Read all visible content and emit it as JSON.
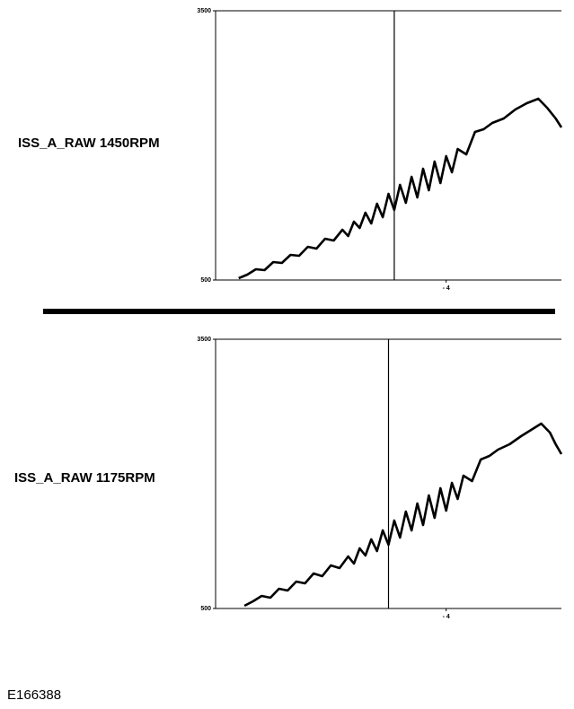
{
  "chart_data": [
    {
      "type": "line",
      "title": "ISS_A_RAW 1450RPM",
      "x": [
        -11.2,
        -10.9,
        -10.6,
        -10.3,
        -10.0,
        -9.7,
        -9.4,
        -9.1,
        -8.8,
        -8.5,
        -8.2,
        -7.9,
        -7.6,
        -7.4,
        -7.2,
        -7.0,
        -6.8,
        -6.6,
        -6.4,
        -6.2,
        -6.0,
        -5.8,
        -5.6,
        -5.4,
        -5.2,
        -5.0,
        -4.8,
        -4.6,
        -4.4,
        -4.2,
        -4.0,
        -3.8,
        -3.6,
        -3.3,
        -3.0,
        -2.7,
        -2.4,
        -2.0,
        -1.6,
        -1.2,
        -0.8,
        -0.5,
        -0.2,
        0
      ],
      "series": [
        {
          "color": "#000000",
          "values": [
            520,
            560,
            620,
            610,
            700,
            690,
            780,
            770,
            870,
            850,
            960,
            940,
            1060,
            990,
            1150,
            1080,
            1250,
            1130,
            1350,
            1200,
            1460,
            1280,
            1560,
            1360,
            1650,
            1420,
            1740,
            1500,
            1820,
            1580,
            1880,
            1700,
            1960,
            1900,
            2150,
            2180,
            2250,
            2300,
            2400,
            2470,
            2520,
            2420,
            2300,
            2200
          ]
        }
      ],
      "cursor_x": -5.8,
      "xlim": [
        -12,
        0
      ],
      "xticks": [
        {
          "value": -4,
          "label": "- 4"
        }
      ],
      "ylim": [
        500,
        3500
      ],
      "yticks": [
        500,
        3500
      ]
    },
    {
      "type": "line",
      "title": "ISS_A_RAW 1175RPM",
      "x": [
        -11.0,
        -10.7,
        -10.4,
        -10.1,
        -9.8,
        -9.5,
        -9.2,
        -8.9,
        -8.6,
        -8.3,
        -8.0,
        -7.7,
        -7.4,
        -7.2,
        -7.0,
        -6.8,
        -6.6,
        -6.4,
        -6.2,
        -6.0,
        -5.8,
        -5.6,
        -5.4,
        -5.2,
        -5.0,
        -4.8,
        -4.6,
        -4.4,
        -4.2,
        -4.0,
        -3.8,
        -3.6,
        -3.4,
        -3.1,
        -2.8,
        -2.5,
        -2.2,
        -1.8,
        -1.4,
        -1.0,
        -0.7,
        -0.4,
        -0.2,
        0
      ],
      "series": [
        {
          "color": "#000000",
          "values": [
            530,
            580,
            640,
            620,
            720,
            700,
            800,
            780,
            890,
            860,
            980,
            950,
            1080,
            1000,
            1170,
            1090,
            1270,
            1140,
            1370,
            1210,
            1480,
            1290,
            1580,
            1370,
            1670,
            1430,
            1760,
            1510,
            1840,
            1590,
            1900,
            1720,
            1980,
            1920,
            2160,
            2200,
            2270,
            2330,
            2420,
            2500,
            2560,
            2460,
            2330,
            2220
          ]
        }
      ],
      "cursor_x": -6.0,
      "xlim": [
        -12,
        0
      ],
      "xticks": [
        {
          "value": -4,
          "label": "- 4"
        }
      ],
      "ylim": [
        500,
        3500
      ],
      "yticks": [
        500,
        3500
      ]
    }
  ],
  "figure_id": "E166388"
}
